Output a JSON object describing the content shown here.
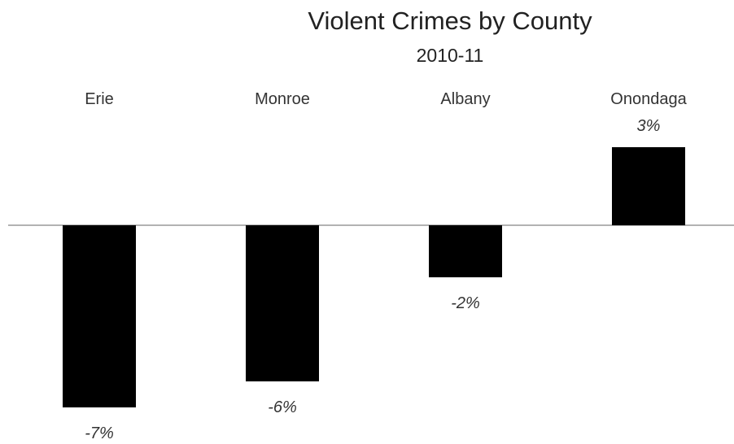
{
  "chart_data": {
    "type": "bar",
    "title": "Violent Crimes by County",
    "subtitle": "2010-11",
    "categories": [
      "Erie",
      "Monroe",
      "Albany",
      "Onondaga"
    ],
    "values": [
      -7,
      -6,
      -2,
      3
    ],
    "data_labels": [
      "-7%",
      "-6%",
      "-2%",
      "3%"
    ],
    "xlabel": "",
    "ylabel": "",
    "ylim": [
      -7,
      3
    ],
    "grid": false,
    "legend": "none",
    "category_label_position": "top",
    "colors": {
      "bar": "#000000",
      "axis": "#999999",
      "text": "#222222",
      "background": "#ffffff"
    }
  }
}
